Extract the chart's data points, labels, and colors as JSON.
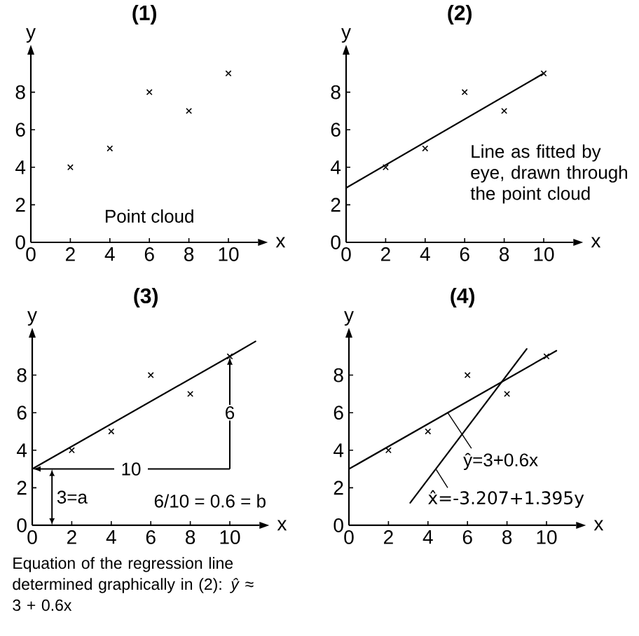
{
  "chart_data": [
    {
      "type": "scatter",
      "title": "(1)",
      "xlabel": "x",
      "ylabel": "y",
      "xlim": [
        0,
        11.5
      ],
      "ylim": [
        0,
        10
      ],
      "xticks": [
        0,
        2,
        4,
        6,
        8,
        10
      ],
      "yticks": [
        0,
        2,
        4,
        6,
        8
      ],
      "x": [
        2,
        4,
        6,
        8,
        10
      ],
      "series": [
        {
          "marker": "cross",
          "color": "#000000",
          "values": [
            4,
            5,
            8,
            7,
            9
          ]
        }
      ],
      "annotations": [
        "Point cloud"
      ]
    },
    {
      "type": "scatter",
      "title": "(2)",
      "xlabel": "x",
      "ylabel": "y",
      "xlim": [
        0,
        11.5
      ],
      "ylim": [
        0,
        10
      ],
      "xticks": [
        0,
        2,
        4,
        6,
        8,
        10
      ],
      "yticks": [
        0,
        2,
        4,
        6,
        8
      ],
      "x": [
        2,
        4,
        6,
        8,
        10
      ],
      "series": [
        {
          "marker": "cross",
          "color": "#000000",
          "values": [
            4,
            5,
            8,
            7,
            9
          ]
        },
        {
          "type": "line",
          "marker": "none",
          "color": "#000000",
          "x": [
            0,
            10
          ],
          "values": [
            2.9,
            9.0
          ]
        }
      ],
      "annotations": [
        "Line as fitted by eye, drawn through the point cloud"
      ]
    },
    {
      "type": "scatter",
      "title": "(3)",
      "xlabel": "x",
      "ylabel": "y",
      "xlim": [
        0,
        11.5
      ],
      "ylim": [
        0,
        10
      ],
      "xticks": [
        0,
        2,
        4,
        6,
        8,
        10
      ],
      "yticks": [
        0,
        2,
        4,
        6,
        8
      ],
      "x": [
        2,
        4,
        6,
        8,
        10
      ],
      "series": [
        {
          "marker": "cross",
          "color": "#000000",
          "values": [
            4,
            5,
            8,
            7,
            9
          ]
        },
        {
          "type": "line",
          "marker": "none",
          "color": "#000000",
          "x": [
            0,
            10,
            11.3
          ],
          "values": [
            3,
            9,
            9.8
          ]
        }
      ],
      "annotations": [
        {
          "text": "10",
          "x": 5,
          "y": 3
        },
        {
          "text": "6",
          "x": 10,
          "y": 6
        },
        "3=a",
        "6/10 = 0.6 = b",
        "Equation of the regression line determined graphically in (2): *ŷ* ≈ 3 + 0.6x"
      ]
    },
    {
      "type": "scatter",
      "title": "(4)",
      "xlabel": "x",
      "ylabel": "y",
      "xlim": [
        0,
        11.5
      ],
      "ylim": [
        0,
        10
      ],
      "xticks": [
        0,
        2,
        4,
        6,
        8,
        10
      ],
      "yticks": [
        0,
        2,
        4,
        6,
        8
      ],
      "x": [
        2,
        4,
        6,
        8,
        10
      ],
      "series": [
        {
          "marker": "cross",
          "color": "#000000",
          "values": [
            4,
            5,
            8,
            7,
            9
          ]
        },
        {
          "type": "line",
          "marker": "none",
          "color": "#000000",
          "x": [
            0,
            10.5
          ],
          "values": [
            3,
            9.3
          ]
        },
        {
          "type": "line",
          "marker": "none",
          "color": "#000000",
          "x": [
            3.1,
            9.0
          ],
          "values": [
            1.2,
            9.4
          ]
        }
      ],
      "annotations": [
        {
          "text": "ŷ=3+0.6x",
          "x": 5,
          "y": 6
        },
        {
          "text": "x̂=-3.207+1.395y",
          "x": 4.4,
          "y": 3.0
        }
      ]
    }
  ]
}
